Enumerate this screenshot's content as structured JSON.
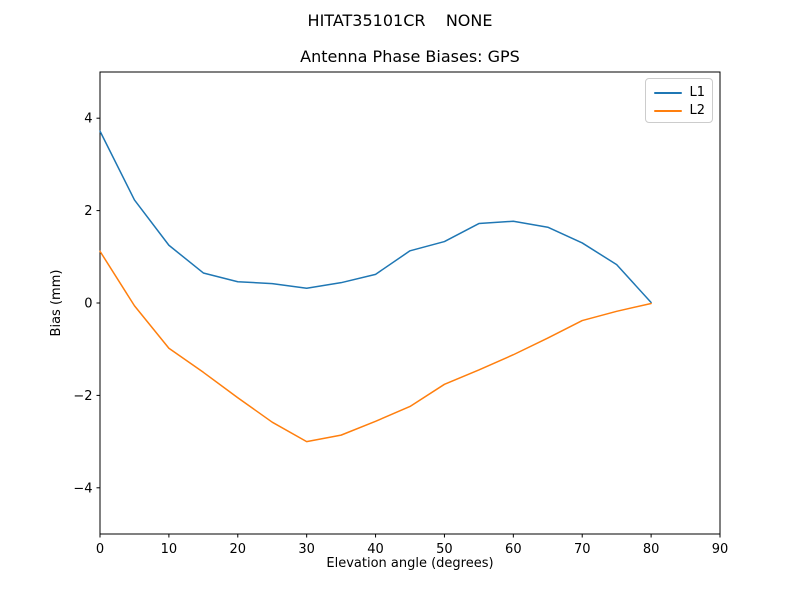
{
  "chart_data": {
    "type": "line",
    "suptitle": "HITAT35101CR    NONE",
    "title": "Antenna Phase Biases: GPS",
    "xlabel": "Elevation angle (degrees)",
    "ylabel": "Bias (mm)",
    "xlim": [
      0,
      90
    ],
    "ylim": [
      -5,
      5
    ],
    "xticks": [
      0,
      10,
      20,
      30,
      40,
      50,
      60,
      70,
      80,
      90
    ],
    "yticks": [
      -4,
      -2,
      0,
      2,
      4
    ],
    "grid": false,
    "background": "#ffffff",
    "spine_color": "#000000",
    "legend": {
      "position": "upper right",
      "entries": [
        {
          "label": "L1",
          "color": "#1f77b4"
        },
        {
          "label": "L2",
          "color": "#ff7f0e"
        }
      ]
    },
    "x": [
      0,
      5,
      10,
      15,
      20,
      25,
      30,
      35,
      40,
      45,
      50,
      55,
      60,
      65,
      70,
      75,
      80
    ],
    "series": [
      {
        "name": "L1",
        "color": "#1f77b4",
        "values": [
          3.72,
          2.23,
          1.25,
          0.65,
          0.46,
          0.42,
          0.32,
          0.44,
          0.62,
          1.13,
          1.33,
          1.72,
          1.77,
          1.64,
          1.3,
          0.83,
          0.01
        ]
      },
      {
        "name": "L2",
        "color": "#ff7f0e",
        "values": [
          1.12,
          -0.06,
          -0.98,
          -1.5,
          -2.05,
          -2.58,
          -3.0,
          -2.86,
          -2.56,
          -2.24,
          -1.76,
          -1.45,
          -1.12,
          -0.76,
          -0.38,
          -0.18,
          -0.01
        ]
      }
    ]
  }
}
